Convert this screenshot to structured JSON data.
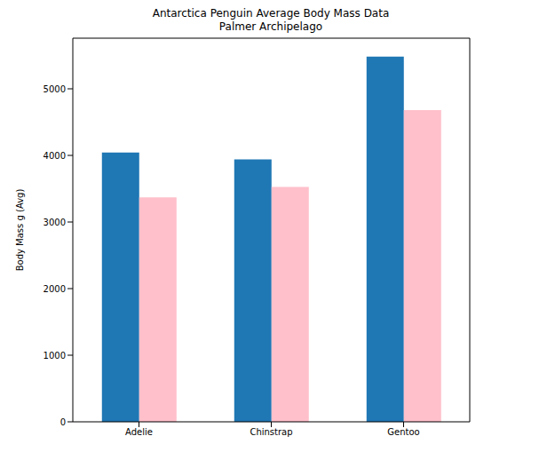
{
  "chart_data": {
    "type": "bar",
    "title": "Antarctica Penguin Average Body Mass Data\nPalmer Archipelago",
    "y_label": "Body Mass g (Avg)",
    "categories": [
      "Adelie",
      "Chinstrap",
      "Gentoo"
    ],
    "series": [
      {
        "color": "#1f77b4",
        "values": [
          4043,
          3939,
          5485
        ]
      },
      {
        "color": "#ffc0cb",
        "values": [
          3369,
          3527,
          4680
        ]
      }
    ],
    "ylim": [
      0,
      5760
    ],
    "yticks": [
      0,
      1000,
      2000,
      3000,
      4000,
      5000
    ],
    "grid": false,
    "legend": false
  }
}
